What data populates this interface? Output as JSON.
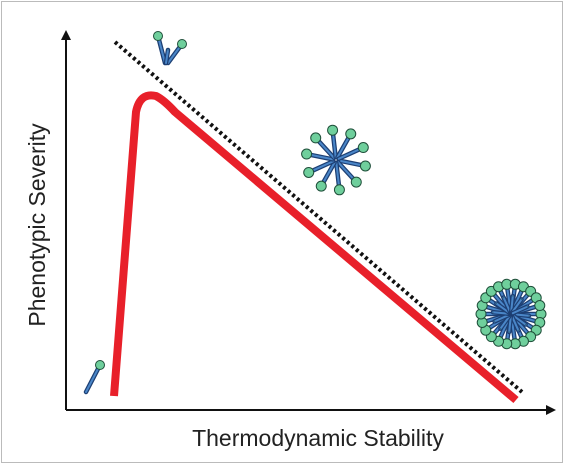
{
  "axes": {
    "x_label": "Thermodynamic Stability",
    "y_label": "Phenotypic Severity"
  }
}
